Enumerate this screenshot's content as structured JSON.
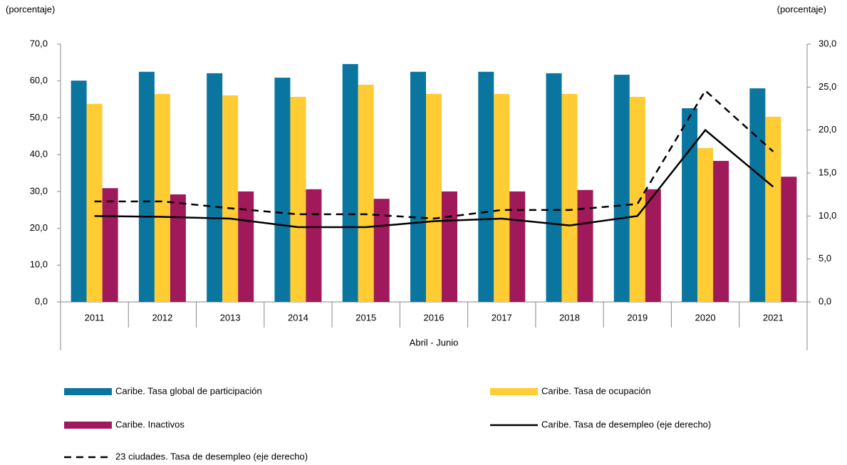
{
  "chart_data": {
    "type": "bar",
    "y_label": "(porcentaje)",
    "y2_label": "(porcentaje)",
    "x_label": "Abril - Junio",
    "categories": [
      "2011",
      "2012",
      "2013",
      "2014",
      "2015",
      "2016",
      "2017",
      "2018",
      "2019",
      "2020",
      "2021"
    ],
    "ylim": [
      0,
      70
    ],
    "yticks": [
      {
        "value": 0,
        "label": "0,0"
      },
      {
        "value": 10,
        "label": "10,0"
      },
      {
        "value": 20,
        "label": "20,0"
      },
      {
        "value": 30,
        "label": "30,0"
      },
      {
        "value": 40,
        "label": "40,0"
      },
      {
        "value": 50,
        "label": "50,0"
      },
      {
        "value": 60,
        "label": "60,0"
      },
      {
        "value": 70,
        "label": "70,0"
      }
    ],
    "y2lim": [
      0,
      30
    ],
    "y2ticks": [
      {
        "value": 0,
        "label": "0,0"
      },
      {
        "value": 5,
        "label": "5,0"
      },
      {
        "value": 10,
        "label": "10,0"
      },
      {
        "value": 15,
        "label": "15,0"
      },
      {
        "value": 20,
        "label": "20,0"
      },
      {
        "value": 25,
        "label": "25,0"
      },
      {
        "value": 30,
        "label": "30,0"
      }
    ],
    "series": [
      {
        "name": "Caribe. Tasa global de participación",
        "type": "bar",
        "color": "#0a76a0",
        "values": [
          60.1,
          62.5,
          62.1,
          60.9,
          64.6,
          62.5,
          62.5,
          62.1,
          61.7,
          52.6,
          58.0
        ]
      },
      {
        "name": "Caribe. Tasa de ocupación",
        "type": "bar",
        "color": "#ffcd33",
        "values": [
          53.8,
          56.5,
          56.1,
          55.7,
          59.0,
          56.5,
          56.5,
          56.5,
          55.7,
          41.8,
          50.3
        ]
      },
      {
        "name": "Caribe. Inactivos",
        "type": "bar",
        "color": "#a0195a",
        "values": [
          30.9,
          29.2,
          30.0,
          30.6,
          28.0,
          30.0,
          30.0,
          30.4,
          30.6,
          38.3,
          34.0
        ]
      },
      {
        "name": "Caribe. Tasa de desempleo (eje derecho)",
        "type": "line",
        "axis": "y2",
        "color": "#000000",
        "style": "solid",
        "values": [
          10.0,
          9.9,
          9.7,
          8.7,
          8.7,
          9.4,
          9.7,
          8.9,
          10.0,
          20.0,
          13.4
        ]
      },
      {
        "name": "23 ciudades. Tasa de desempleo (eje derecho)",
        "type": "line",
        "axis": "y2",
        "color": "#000000",
        "style": "dashed",
        "values": [
          11.7,
          11.7,
          10.9,
          10.2,
          10.2,
          9.7,
          10.7,
          10.7,
          11.4,
          24.6,
          17.5
        ]
      }
    ]
  }
}
